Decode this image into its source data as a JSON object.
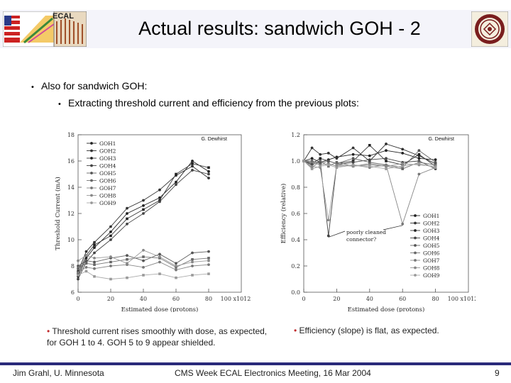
{
  "header": {
    "title": "Actual results: sandwich GOH - 2",
    "left_logo_label": "ECAL",
    "right_logo": "university-seal"
  },
  "bullets": {
    "level1": "Also for sandwich GOH:",
    "level2": "Extracting threshold current and efficiency from the previous plots:"
  },
  "chart_data": [
    {
      "type": "line",
      "title": "",
      "annotation": "G. Dewhirst",
      "xlabel": "Estimated dose (protons)",
      "ylabel": "Threshold Current (mA)",
      "x_multiplier": "x10^12",
      "xlim": [
        0,
        100
      ],
      "ylim": [
        6,
        18
      ],
      "xticks": [
        0,
        20,
        40,
        60,
        80
      ],
      "yticks": [
        6,
        8,
        10,
        12,
        14,
        16,
        18
      ],
      "x": [
        0,
        5,
        10,
        20,
        30,
        40,
        50,
        60,
        70,
        80
      ],
      "series": [
        {
          "name": "GOH1",
          "values": [
            7.2,
            8.6,
            9.4,
            10.6,
            12.0,
            12.6,
            13.2,
            14.4,
            16.0,
            15.2
          ]
        },
        {
          "name": "GOH2",
          "values": [
            7.6,
            9.1,
            9.8,
            11.0,
            12.4,
            13.0,
            13.8,
            14.9,
            15.6,
            14.7
          ]
        },
        {
          "name": "GOH3",
          "values": [
            7.4,
            8.8,
            9.6,
            10.3,
            11.6,
            12.3,
            13.0,
            15.0,
            15.8,
            15.5
          ]
        },
        {
          "name": "GOH4",
          "values": [
            7.0,
            8.3,
            9.0,
            10.0,
            11.2,
            12.0,
            12.9,
            14.2,
            15.3,
            15.0
          ]
        },
        {
          "name": "GOH5",
          "values": [
            8.0,
            8.4,
            8.3,
            8.6,
            8.8,
            8.4,
            8.9,
            8.2,
            9.0,
            9.1
          ]
        },
        {
          "name": "GOH6",
          "values": [
            7.8,
            8.2,
            8.1,
            8.3,
            8.5,
            8.7,
            8.6,
            7.9,
            8.5,
            8.6
          ]
        },
        {
          "name": "GOH7",
          "values": [
            7.5,
            7.9,
            7.8,
            8.0,
            8.1,
            7.9,
            8.3,
            7.7,
            8.0,
            8.1
          ]
        },
        {
          "name": "GOH8",
          "values": [
            8.4,
            8.8,
            8.6,
            8.7,
            8.2,
            9.2,
            8.7,
            8.0,
            8.3,
            8.4
          ]
        },
        {
          "name": "GOH9",
          "values": [
            7.3,
            7.6,
            7.2,
            7.0,
            7.1,
            7.3,
            7.4,
            7.1,
            7.3,
            7.4
          ]
        }
      ],
      "legend": "top-left"
    },
    {
      "type": "line",
      "title": "",
      "annotation": "G. Dewhirst",
      "callout": "poorly cleaned connector?",
      "xlabel": "Estimated dose (protons)",
      "ylabel": "Efficiency (relative)",
      "x_multiplier": "x10^12",
      "xlim": [
        0,
        100
      ],
      "ylim": [
        0,
        1.2
      ],
      "xticks": [
        0,
        20,
        40,
        60,
        80
      ],
      "yticks": [
        0,
        0.2,
        0.4,
        0.6,
        0.8,
        1.0,
        1.2
      ],
      "x": [
        0,
        5,
        10,
        15,
        20,
        30,
        40,
        50,
        60,
        70,
        80
      ],
      "series": [
        {
          "name": "GOH1",
          "values": [
            1.0,
            1.02,
            0.99,
            1.01,
            1.03,
            1.05,
            1.04,
            1.08,
            1.06,
            1.02,
            1.01
          ]
        },
        {
          "name": "GOH2",
          "values": [
            1.0,
            1.1,
            1.05,
            1.06,
            1.02,
            1.1,
            1.0,
            1.13,
            1.09,
            1.04,
            0.98
          ]
        },
        {
          "name": "GOH3",
          "values": [
            1.0,
            0.98,
            1.02,
            1.0,
            0.98,
            1.0,
            1.12,
            1.0,
            0.97,
            1.05,
            0.96
          ]
        },
        {
          "name": "GOH4",
          "values": [
            1.0,
            0.97,
            1.0,
            0.43,
            0.97,
            0.99,
            1.01,
            1.02,
            0.99,
            1.0,
            0.94
          ]
        },
        {
          "name": "GOH5",
          "values": [
            1.0,
            1.0,
            0.98,
            1.0,
            0.98,
            1.02,
            0.99,
            0.97,
            0.95,
            1.08,
            0.99
          ]
        },
        {
          "name": "GOH6",
          "values": [
            1.0,
            0.95,
            1.0,
            0.96,
            0.99,
            0.96,
            0.98,
            0.96,
            0.94,
            0.99,
            0.97
          ]
        },
        {
          "name": "GOH7",
          "values": [
            1.0,
            0.99,
            0.97,
            0.98,
            0.96,
            0.97,
            0.95,
            0.97,
            0.52,
            0.9,
            0.95
          ]
        },
        {
          "name": "GOH8",
          "values": [
            1.0,
            0.96,
            0.95,
            0.55,
            0.97,
            0.96,
            0.97,
            0.96,
            0.98,
            0.97,
            0.96
          ]
        },
        {
          "name": "GOH9",
          "values": [
            1.0,
            0.94,
            0.96,
            0.97,
            0.95,
            0.97,
            0.96,
            0.94,
            0.96,
            0.98,
            0.95
          ]
        }
      ],
      "legend": "bottom-right"
    }
  ],
  "captions": {
    "left": "Threshold current rises smoothly with dose, as expected, for GOH 1 to 4.  GOH 5 to 9 appear shielded.",
    "right": "Efficiency (slope) is flat, as expected."
  },
  "footer": {
    "left": "Jim Grahl, U. Minnesota",
    "center": "CMS Week ECAL Electronics Meeting, 16 Mar 2004",
    "page": "9"
  },
  "colors": {
    "footer_bar": "#2a2a7a",
    "caption_bullet": "#c0292b",
    "title_band": "#eeeef6"
  }
}
